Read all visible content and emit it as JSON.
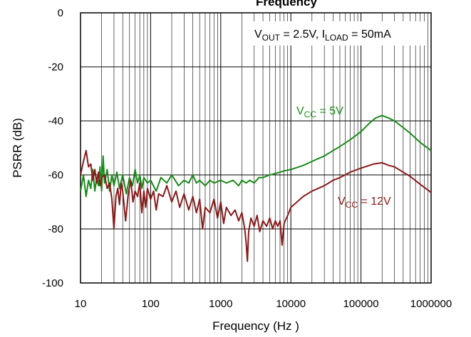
{
  "chart_data": {
    "type": "line",
    "title_partial": "Frequency",
    "xlabel": "Frequency (Hz )",
    "ylabel": "PSRR (dB)",
    "x_scale": "log",
    "xlim": [
      10,
      1000000
    ],
    "ylim": [
      -100,
      0
    ],
    "x_ticks": [
      "10",
      "100",
      "1000",
      "10000",
      "100000",
      "1000000"
    ],
    "y_ticks": [
      "0",
      "-20",
      "-40",
      "-60",
      "-80",
      "-100"
    ],
    "grid": true,
    "annotation": {
      "v_main": "V",
      "v_sub": "OUT",
      "v_rest": " = 2.5V, I",
      "i_sub": "LOAD",
      "i_rest": " = 50mA"
    },
    "series": [
      {
        "label_main": "V",
        "label_sub": "CC",
        "label_rest": " = 5V",
        "color": "#1a8a1a",
        "points": [
          [
            10,
            -66
          ],
          [
            11,
            -60
          ],
          [
            12,
            -68
          ],
          [
            13,
            -62
          ],
          [
            14,
            -65
          ],
          [
            15,
            -58
          ],
          [
            16,
            -66
          ],
          [
            17,
            -61
          ],
          [
            18,
            -64
          ],
          [
            19,
            -57
          ],
          [
            20,
            -66
          ],
          [
            21,
            -53
          ],
          [
            22,
            -63
          ],
          [
            24,
            -58
          ],
          [
            26,
            -66
          ],
          [
            28,
            -60
          ],
          [
            30,
            -64
          ],
          [
            33,
            -59
          ],
          [
            36,
            -65
          ],
          [
            40,
            -60
          ],
          [
            45,
            -67
          ],
          [
            50,
            -61
          ],
          [
            55,
            -64
          ],
          [
            60,
            -58
          ],
          [
            65,
            -63
          ],
          [
            70,
            -60
          ],
          [
            75,
            -65
          ],
          [
            80,
            -61
          ],
          [
            90,
            -63
          ],
          [
            100,
            -62
          ],
          [
            120,
            -66
          ],
          [
            140,
            -61
          ],
          [
            170,
            -63
          ],
          [
            200,
            -60
          ],
          [
            250,
            -64
          ],
          [
            300,
            -62
          ],
          [
            350,
            -63
          ],
          [
            400,
            -60
          ],
          [
            450,
            -63
          ],
          [
            500,
            -62
          ],
          [
            600,
            -64
          ],
          [
            700,
            -62
          ],
          [
            800,
            -63
          ],
          [
            1000,
            -62
          ],
          [
            1200,
            -63
          ],
          [
            1500,
            -62
          ],
          [
            1800,
            -64
          ],
          [
            2000,
            -62
          ],
          [
            2300,
            -63
          ],
          [
            2600,
            -62
          ],
          [
            3000,
            -63
          ],
          [
            3500,
            -61
          ],
          [
            4000,
            -61
          ],
          [
            5000,
            -60
          ],
          [
            6000,
            -59.5
          ],
          [
            7000,
            -59
          ],
          [
            8000,
            -58.5
          ],
          [
            10000,
            -58
          ],
          [
            15000,
            -56.5
          ],
          [
            20000,
            -55
          ],
          [
            30000,
            -53
          ],
          [
            40000,
            -51
          ],
          [
            50000,
            -49.5
          ],
          [
            70000,
            -47
          ],
          [
            100000,
            -44
          ],
          [
            130000,
            -41
          ],
          [
            160000,
            -39
          ],
          [
            200000,
            -38
          ],
          [
            250000,
            -39
          ],
          [
            300000,
            -40
          ],
          [
            400000,
            -42.5
          ],
          [
            500000,
            -44.5
          ],
          [
            700000,
            -48
          ],
          [
            1000000,
            -51
          ]
        ]
      },
      {
        "label_main": "V",
        "label_sub": "CC",
        "label_rest": " = 12V",
        "color": "#8b1a1a",
        "points": [
          [
            10,
            -60
          ],
          [
            11,
            -55
          ],
          [
            12,
            -51
          ],
          [
            13,
            -57
          ],
          [
            14,
            -56
          ],
          [
            15,
            -62
          ],
          [
            16,
            -58
          ],
          [
            17,
            -63
          ],
          [
            18,
            -59
          ],
          [
            19,
            -64
          ],
          [
            20,
            -61
          ],
          [
            22,
            -60
          ],
          [
            24,
            -65
          ],
          [
            26,
            -63
          ],
          [
            28,
            -69
          ],
          [
            30,
            -80
          ],
          [
            32,
            -68
          ],
          [
            34,
            -65
          ],
          [
            36,
            -71
          ],
          [
            38,
            -63
          ],
          [
            40,
            -66
          ],
          [
            44,
            -77
          ],
          [
            48,
            -67
          ],
          [
            52,
            -62
          ],
          [
            56,
            -70
          ],
          [
            60,
            -66
          ],
          [
            65,
            -68
          ],
          [
            70,
            -63
          ],
          [
            75,
            -74
          ],
          [
            80,
            -66
          ],
          [
            85,
            -72
          ],
          [
            90,
            -65
          ],
          [
            100,
            -69
          ],
          [
            110,
            -66
          ],
          [
            120,
            -73
          ],
          [
            130,
            -67
          ],
          [
            150,
            -68
          ],
          [
            170,
            -64
          ],
          [
            200,
            -70
          ],
          [
            230,
            -66
          ],
          [
            260,
            -72
          ],
          [
            300,
            -67
          ],
          [
            350,
            -73
          ],
          [
            400,
            -68
          ],
          [
            450,
            -74
          ],
          [
            500,
            -69
          ],
          [
            550,
            -80
          ],
          [
            600,
            -72
          ],
          [
            700,
            -74
          ],
          [
            800,
            -69
          ],
          [
            900,
            -76
          ],
          [
            1000,
            -70
          ],
          [
            1100,
            -78
          ],
          [
            1200,
            -72
          ],
          [
            1400,
            -75
          ],
          [
            1600,
            -73
          ],
          [
            1800,
            -77
          ],
          [
            2000,
            -74
          ],
          [
            2200,
            -80
          ],
          [
            2300,
            -85
          ],
          [
            2400,
            -92
          ],
          [
            2500,
            -81
          ],
          [
            2700,
            -76
          ],
          [
            3000,
            -79
          ],
          [
            3300,
            -75
          ],
          [
            3600,
            -81
          ],
          [
            4000,
            -77
          ],
          [
            4500,
            -79
          ],
          [
            5000,
            -76
          ],
          [
            5500,
            -80
          ],
          [
            6000,
            -77
          ],
          [
            6500,
            -79
          ],
          [
            7000,
            -77
          ],
          [
            7500,
            -86
          ],
          [
            8000,
            -78
          ],
          [
            9000,
            -75
          ],
          [
            10000,
            -72
          ],
          [
            15000,
            -68
          ],
          [
            20000,
            -66
          ],
          [
            30000,
            -64
          ],
          [
            40000,
            -62
          ],
          [
            50000,
            -61
          ],
          [
            70000,
            -59
          ],
          [
            100000,
            -57.5
          ],
          [
            150000,
            -56
          ],
          [
            200000,
            -55.5
          ],
          [
            250000,
            -56.5
          ],
          [
            300000,
            -57
          ],
          [
            400000,
            -59
          ],
          [
            500000,
            -60.5
          ],
          [
            700000,
            -63.5
          ],
          [
            1000000,
            -66.5
          ]
        ]
      }
    ]
  }
}
